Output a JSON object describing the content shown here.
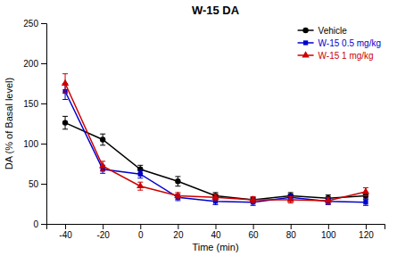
{
  "chart_data": {
    "type": "line",
    "title": "W-15 DA",
    "xlabel": "Time (min)",
    "ylabel": "DA (% of Basal level)",
    "x": [
      -40,
      -20,
      0,
      20,
      40,
      60,
      80,
      100,
      120
    ],
    "series": [
      {
        "name": "Vehicle",
        "color": "#000000",
        "marker": "circle",
        "values": [
          126,
          105,
          68,
          53,
          35,
          30,
          35,
          32,
          35
        ],
        "errors": [
          8,
          7,
          5,
          6,
          4,
          3,
          4,
          4,
          4
        ]
      },
      {
        "name": "W-15 0.5 mg/kg",
        "color": "#0000CC",
        "marker": "square",
        "values": [
          165,
          68,
          62,
          33,
          28,
          27,
          33,
          28,
          27
        ],
        "errors": [
          10,
          5,
          5,
          4,
          4,
          4,
          4,
          4,
          4
        ]
      },
      {
        "name": "W-15 1 mg/kg",
        "color": "#CC0000",
        "marker": "triangle",
        "values": [
          175,
          72,
          47,
          35,
          33,
          30,
          30,
          29,
          40
        ],
        "errors": [
          12,
          6,
          5,
          4,
          4,
          4,
          4,
          4,
          5
        ]
      }
    ],
    "xlim": [
      -50,
      130
    ],
    "xticks": [
      -40,
      -20,
      0,
      20,
      40,
      60,
      80,
      100,
      120
    ],
    "ylim": [
      0,
      250
    ],
    "yticks": [
      0,
      50,
      100,
      150,
      200,
      250
    ],
    "grid": false,
    "legend": "upper right"
  }
}
